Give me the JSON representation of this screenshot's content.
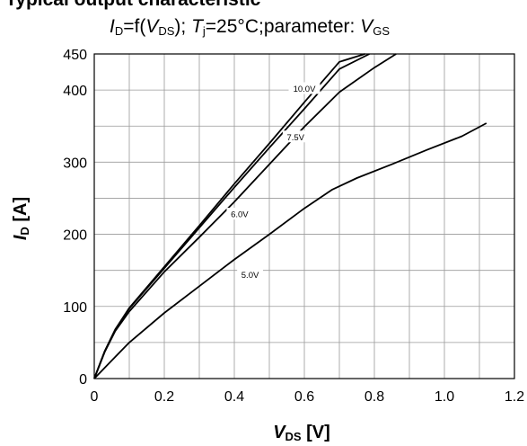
{
  "chart_data": {
    "type": "line",
    "title": "Typical output characteristic",
    "subtitle_parts": {
      "a_sym": "I",
      "a_sub": "D",
      "a_mid": "=f(",
      "b_sym": "V",
      "b_sub": "DS",
      "b_mid": "); ",
      "c_sym": "T",
      "c_sub": "j",
      "c_mid": "=25°C;parameter: ",
      "d_sym": "V",
      "d_sub": "GS"
    },
    "xlabel": {
      "sym": "V",
      "sub": "DS",
      "unit": " [V]"
    },
    "ylabel": {
      "sym": "I",
      "sub": "D",
      "unit": " [A]"
    },
    "xlim": [
      0,
      1.2
    ],
    "ylim": [
      0,
      450
    ],
    "x_ticks": [
      0,
      0.2,
      0.4,
      0.6,
      0.8,
      1.0,
      1.2
    ],
    "x_tick_labels": [
      "0",
      "0.2",
      "0.4",
      "0.6",
      "0.8",
      "1.0",
      "1.2"
    ],
    "y_ticks": [
      0,
      100,
      200,
      300,
      400,
      450
    ],
    "y_tick_labels": [
      "0",
      "100",
      "200",
      "300",
      "400",
      "450"
    ],
    "grid": true,
    "series": [
      {
        "name": "10.0V",
        "x": [
          0,
          0.03,
          0.06,
          0.1,
          0.2,
          0.3,
          0.4,
          0.5,
          0.6,
          0.7,
          0.773
        ],
        "y": [
          0,
          38,
          68,
          98,
          155,
          212,
          270,
          326,
          383,
          439,
          450
        ]
      },
      {
        "name": "7.5V",
        "x": [
          0,
          0.03,
          0.06,
          0.1,
          0.2,
          0.3,
          0.4,
          0.5,
          0.6,
          0.7,
          0.786
        ],
        "y": [
          0,
          38,
          68,
          97,
          153,
          209,
          265,
          320,
          374,
          429,
          450
        ]
      },
      {
        "name": "6.0V",
        "x": [
          0,
          0.03,
          0.06,
          0.1,
          0.2,
          0.3,
          0.4,
          0.5,
          0.6,
          0.7,
          0.8,
          0.862
        ],
        "y": [
          0,
          37,
          66,
          93,
          148,
          196,
          245,
          297,
          349,
          397,
          431,
          450
        ]
      },
      {
        "name": "5.0V",
        "x": [
          0,
          0.05,
          0.1,
          0.2,
          0.3,
          0.4,
          0.5,
          0.6,
          0.68,
          0.75,
          0.85,
          0.95,
          1.05,
          1.12
        ],
        "y": [
          0,
          25,
          50,
          91,
          128,
          165,
          200,
          236,
          262,
          278,
          297,
          317,
          336,
          354
        ]
      }
    ],
    "curve_labels": [
      {
        "text": "10.0V",
        "x": 0.6,
        "y": 402
      },
      {
        "text": "7.5V",
        "x": 0.575,
        "y": 335
      },
      {
        "text": "6.0V",
        "x": 0.415,
        "y": 228
      },
      {
        "text": "5.0V",
        "x": 0.445,
        "y": 144
      }
    ]
  }
}
